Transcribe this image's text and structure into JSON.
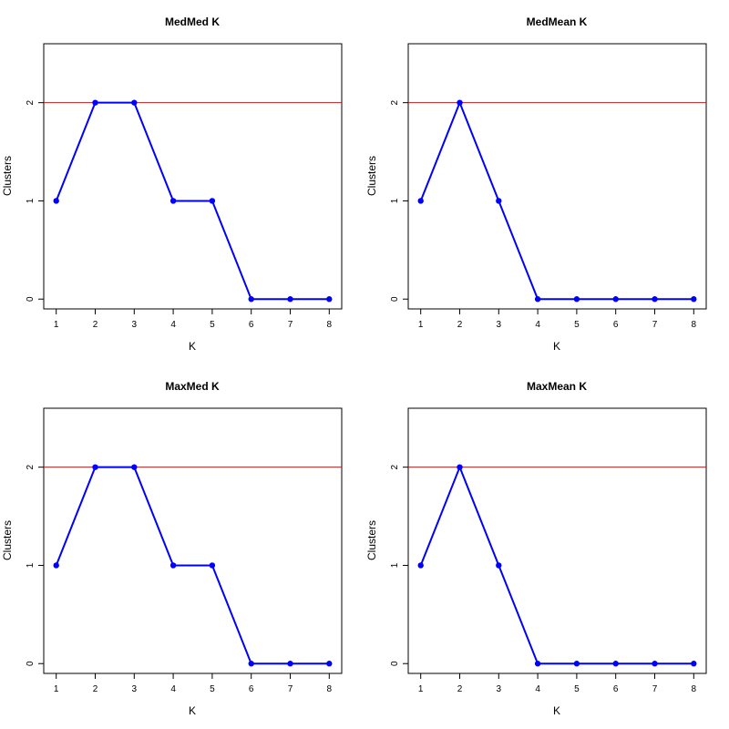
{
  "chart_data": [
    {
      "type": "line",
      "title": "MedMed K",
      "xlabel": "K",
      "ylabel": "Clusters",
      "x": [
        1,
        2,
        3,
        4,
        5,
        6,
        7,
        8
      ],
      "series": [
        {
          "values": [
            1,
            2,
            2,
            1,
            1,
            0,
            0,
            0
          ]
        }
      ],
      "reference_line": 2,
      "ylim": [
        -0.1,
        2.6
      ],
      "yticks": [
        "0",
        "1",
        "2"
      ],
      "xticks": [
        "1",
        "2",
        "3",
        "4",
        "5",
        "6",
        "7",
        "8"
      ],
      "line_color": "#0000ff",
      "reference_color": "#b22222"
    },
    {
      "type": "line",
      "title": "MedMean K",
      "xlabel": "K",
      "ylabel": "Clusters",
      "x": [
        1,
        2,
        3,
        4,
        5,
        6,
        7,
        8
      ],
      "series": [
        {
          "values": [
            1,
            2,
            1,
            0,
            0,
            0,
            0,
            0
          ]
        }
      ],
      "reference_line": 2,
      "ylim": [
        -0.1,
        2.6
      ],
      "yticks": [
        "0",
        "1",
        "2"
      ],
      "xticks": [
        "1",
        "2",
        "3",
        "4",
        "5",
        "6",
        "7",
        "8"
      ],
      "line_color": "#0000ff",
      "reference_color": "#b22222"
    },
    {
      "type": "line",
      "title": "MaxMed K",
      "xlabel": "K",
      "ylabel": "Clusters",
      "x": [
        1,
        2,
        3,
        4,
        5,
        6,
        7,
        8
      ],
      "series": [
        {
          "values": [
            1,
            2,
            2,
            1,
            1,
            0,
            0,
            0
          ]
        }
      ],
      "reference_line": 2,
      "ylim": [
        -0.1,
        2.6
      ],
      "yticks": [
        "0",
        "1",
        "2"
      ],
      "xticks": [
        "1",
        "2",
        "3",
        "4",
        "5",
        "6",
        "7",
        "8"
      ],
      "line_color": "#0000ff",
      "reference_color": "#b22222"
    },
    {
      "type": "line",
      "title": "MaxMean K",
      "xlabel": "K",
      "ylabel": "Clusters",
      "x": [
        1,
        2,
        3,
        4,
        5,
        6,
        7,
        8
      ],
      "series": [
        {
          "values": [
            1,
            2,
            1,
            0,
            0,
            0,
            0,
            0
          ]
        }
      ],
      "reference_line": 2,
      "ylim": [
        -0.1,
        2.6
      ],
      "yticks": [
        "0",
        "1",
        "2"
      ],
      "xticks": [
        "1",
        "2",
        "3",
        "4",
        "5",
        "6",
        "7",
        "8"
      ],
      "line_color": "#0000ff",
      "reference_color": "#b22222"
    }
  ]
}
